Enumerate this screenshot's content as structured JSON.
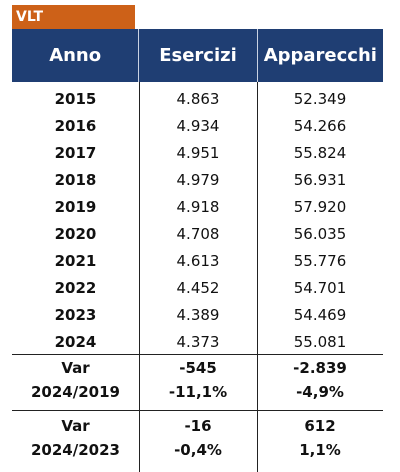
{
  "tag": "VLT",
  "columns": [
    "Anno",
    "Esercizi",
    "Apparecchi"
  ],
  "rows": [
    {
      "anno": "2015",
      "esercizi": "4.863",
      "apparecchi": "52.349"
    },
    {
      "anno": "2016",
      "esercizi": "4.934",
      "apparecchi": "54.266"
    },
    {
      "anno": "2017",
      "esercizi": "4.951",
      "apparecchi": "55.824"
    },
    {
      "anno": "2018",
      "esercizi": "4.979",
      "apparecchi": "56.931"
    },
    {
      "anno": "2019",
      "esercizi": "4.918",
      "apparecchi": "57.920"
    },
    {
      "anno": "2020",
      "esercizi": "4.708",
      "apparecchi": "56.035"
    },
    {
      "anno": "2021",
      "esercizi": "4.613",
      "apparecchi": "55.776"
    },
    {
      "anno": "2022",
      "esercizi": "4.452",
      "apparecchi": "54.701"
    },
    {
      "anno": "2023",
      "esercizi": "4.389",
      "apparecchi": "54.469"
    },
    {
      "anno": "2024",
      "esercizi": "4.373",
      "apparecchi": "55.081"
    }
  ],
  "variations": [
    {
      "label1": "Var",
      "label2": "2024/2019",
      "esercizi_abs": "-545",
      "esercizi_pct": "-11,1%",
      "apparecchi_abs": "-2.839",
      "apparecchi_pct": "-4,9%"
    },
    {
      "label1": "Var",
      "label2": "2024/2023",
      "esercizi_abs": "-16",
      "esercizi_pct": "-0,4%",
      "apparecchi_abs": "612",
      "apparecchi_pct": "1,1%"
    }
  ]
}
